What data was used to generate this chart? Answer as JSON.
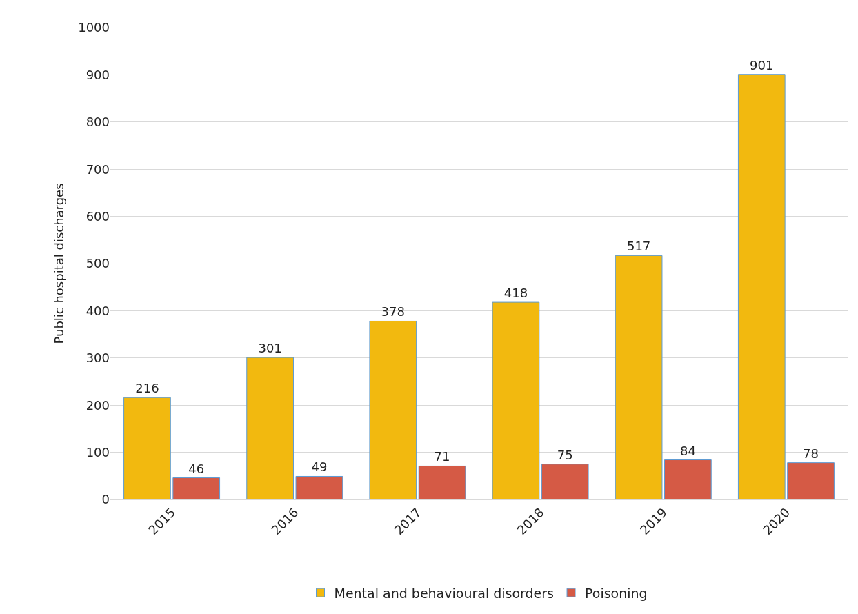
{
  "chart_data": {
    "type": "bar",
    "ylabel": "Public hospital discharges",
    "categories": [
      "2015",
      "2016",
      "2017",
      "2018",
      "2019",
      "2020"
    ],
    "series": [
      {
        "name": "Mental and behavioural disorders",
        "color": "#f2b90f",
        "values": [
          216,
          301,
          378,
          418,
          517,
          901
        ]
      },
      {
        "name": "Poisoning",
        "color": "#d55a45",
        "values": [
          46,
          49,
          71,
          75,
          84,
          78
        ]
      }
    ],
    "ylim": [
      0,
      1000
    ],
    "yticks": [
      0,
      100,
      200,
      300,
      400,
      500,
      600,
      700,
      800,
      900,
      1000
    ],
    "grid": "y",
    "legend": "bottom",
    "data_labels": true
  }
}
